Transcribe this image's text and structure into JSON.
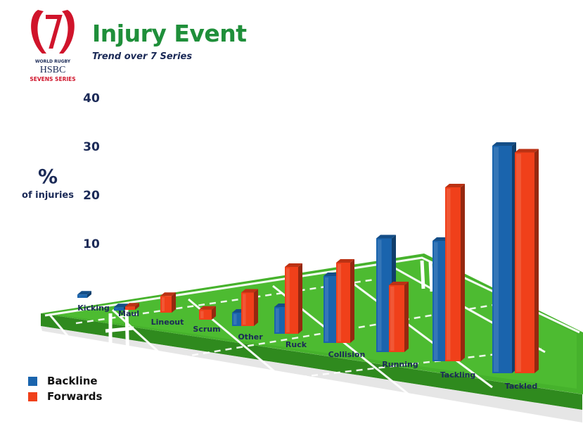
{
  "header": {
    "title": "Injury Event",
    "subtitle": "Trend over 7 Series"
  },
  "logo": {
    "line1": "WORLD RUGBY",
    "line2": "HSBC",
    "line3": "SEVENS SERIES",
    "icon": "sevens-logo-icon"
  },
  "axis": {
    "y_title_symbol": "%",
    "y_title_text": "of injuries"
  },
  "colors": {
    "backline": "#1a64ad",
    "forwards": "#f0401a",
    "pitch": "#43b02a"
  },
  "chart_data": {
    "type": "bar",
    "title": "Injury Event",
    "subtitle": "Trend over 7 Series",
    "ylabel": "% of injuries",
    "ylim": [
      0,
      40
    ],
    "yticks": [
      10,
      20,
      30,
      40
    ],
    "categories": [
      "Kicking",
      "Maul",
      "Lineout",
      "Scrum",
      "Other",
      "Ruck",
      "Collision",
      "Running",
      "Tackling",
      "Tackled"
    ],
    "series": [
      {
        "name": "Backline",
        "values": [
          0.5,
          0.5,
          0,
          0,
          2,
          4,
          10,
          17,
          18,
          34
        ]
      },
      {
        "name": "Forwards",
        "values": [
          0,
          0.5,
          2.5,
          1.5,
          5,
          10,
          12,
          10,
          26,
          33
        ]
      }
    ],
    "legend_position": "bottom-left",
    "grid": false
  }
}
